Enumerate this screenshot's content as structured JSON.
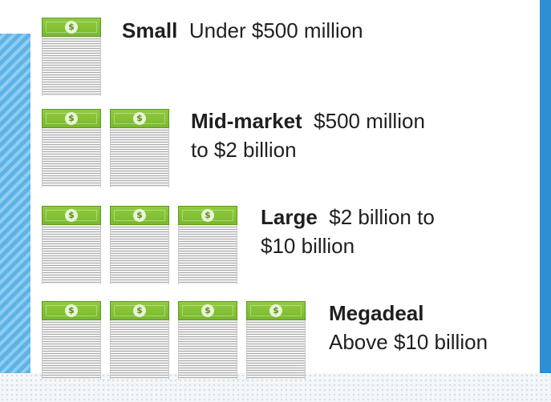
{
  "tiers": [
    {
      "name": "Small",
      "range": "Under $500 million",
      "stacks": 1
    },
    {
      "name": "Mid-market",
      "range_line1": "$500 million",
      "range_line2": "to $2 billion",
      "stacks": 2
    },
    {
      "name": "Large",
      "range_line1": "$2 billion to",
      "range_line2": "$10 billion",
      "stacks": 3
    },
    {
      "name": "Megadeal",
      "range_line2": "Above $10 billion",
      "stacks": 4
    }
  ],
  "icons": {
    "bill_symbol": "$",
    "stack_icon": "money-stack-icon"
  },
  "colors": {
    "bill_green": "#8fcb3e",
    "accent_blue": "#2f8fd3"
  }
}
